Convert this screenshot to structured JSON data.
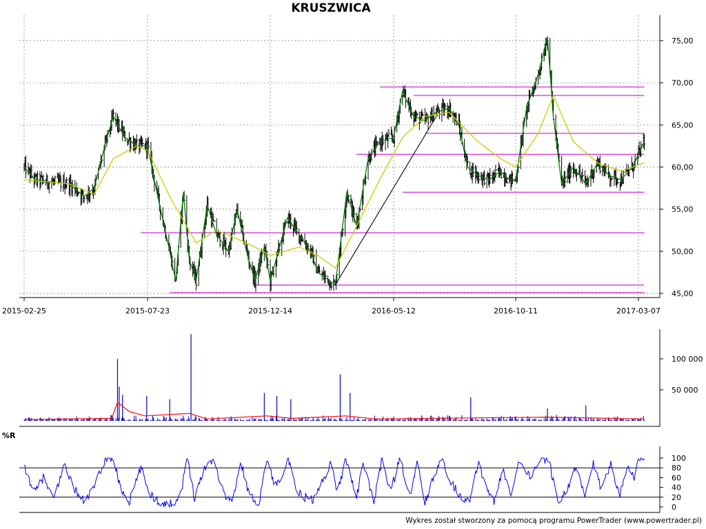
{
  "title": "KRUSZWICA",
  "footer": "Wykres został stworzony za pomocą programu PowerTrader (www.powertrader.pl)",
  "colors": {
    "price": "#000000",
    "short_ma": "#008000",
    "long_ma": "#cccc00",
    "level_lines": "#dd55dd",
    "volume": "#0000cc",
    "volume_ma": "#ff0000",
    "williams_r": "#0000ee",
    "grid": "#777777"
  },
  "chart_data": [
    {
      "type": "line",
      "name": "price",
      "title": "KRUSZWICA",
      "x_tick_labels": [
        "2015-02-25",
        "2015-07-23",
        "2015-12-14",
        "2016-05-12",
        "2016-10-11",
        "2017-03-07"
      ],
      "y_tick_labels": [
        "45,00",
        "50,00",
        "55,00",
        "60,00",
        "65,00",
        "70,00",
        "75,00"
      ],
      "ylim": [
        45,
        77
      ],
      "grid": true,
      "close_series": [
        [
          "2015-02-25",
          60.0
        ],
        [
          "2015-03-10",
          58.5
        ],
        [
          "2015-03-31",
          58.2
        ],
        [
          "2015-04-20",
          58.0
        ],
        [
          "2015-05-08",
          56.5
        ],
        [
          "2015-05-20",
          57.5
        ],
        [
          "2015-06-03",
          63.0
        ],
        [
          "2015-06-12",
          66.0
        ],
        [
          "2015-06-26",
          63.5
        ],
        [
          "2015-07-10",
          62.5
        ],
        [
          "2015-07-23",
          62.5
        ],
        [
          "2015-08-05",
          56.0
        ],
        [
          "2015-08-18",
          50.0
        ],
        [
          "2015-08-25",
          46.5
        ],
        [
          "2015-09-03",
          57.0
        ],
        [
          "2015-09-10",
          49.0
        ],
        [
          "2015-09-18",
          46.5
        ],
        [
          "2015-10-01",
          55.5
        ],
        [
          "2015-10-12",
          52.0
        ],
        [
          "2015-10-26",
          50.0
        ],
        [
          "2015-11-05",
          55.0
        ],
        [
          "2015-11-16",
          50.0
        ],
        [
          "2015-11-26",
          46.5
        ],
        [
          "2015-12-07",
          50.5
        ],
        [
          "2015-12-14",
          46.5
        ],
        [
          "2016-01-04",
          54.0
        ],
        [
          "2016-01-18",
          52.0
        ],
        [
          "2016-02-01",
          50.0
        ],
        [
          "2016-02-10",
          47.5
        ],
        [
          "2016-03-02",
          46.0
        ],
        [
          "2016-03-16",
          57.0
        ],
        [
          "2016-03-28",
          53.0
        ],
        [
          "2016-04-11",
          61.0
        ],
        [
          "2016-04-25",
          63.0
        ],
        [
          "2016-05-12",
          63.5
        ],
        [
          "2016-05-23",
          69.0
        ],
        [
          "2016-06-06",
          66.0
        ],
        [
          "2016-06-20",
          65.5
        ],
        [
          "2016-07-04",
          66.5
        ],
        [
          "2016-07-20",
          67.0
        ],
        [
          "2016-08-01",
          65.0
        ],
        [
          "2016-08-12",
          60.0
        ],
        [
          "2016-08-25",
          59.0
        ],
        [
          "2016-09-08",
          58.5
        ],
        [
          "2016-09-22",
          59.5
        ],
        [
          "2016-10-03",
          58.5
        ],
        [
          "2016-10-11",
          58.5
        ],
        [
          "2016-10-24",
          67.0
        ],
        [
          "2016-11-07",
          71.0
        ],
        [
          "2016-11-18",
          75.5
        ],
        [
          "2016-11-25",
          66.0
        ],
        [
          "2016-12-05",
          58.0
        ],
        [
          "2016-12-19",
          60.0
        ],
        [
          "2017-01-03",
          58.0
        ],
        [
          "2017-01-17",
          60.5
        ],
        [
          "2017-01-31",
          59.0
        ],
        [
          "2017-02-14",
          58.5
        ],
        [
          "2017-02-28",
          60.0
        ],
        [
          "2017-03-07",
          61.5
        ],
        [
          "2017-03-14",
          63.0
        ]
      ],
      "long_ma_series": [
        [
          "2015-02-25",
          58.5
        ],
        [
          "2015-04-20",
          58.0
        ],
        [
          "2015-05-20",
          56.8
        ],
        [
          "2015-06-12",
          61.0
        ],
        [
          "2015-07-10",
          62.5
        ],
        [
          "2015-07-23",
          62.0
        ],
        [
          "2015-08-18",
          56.5
        ],
        [
          "2015-09-18",
          51.0
        ],
        [
          "2015-10-12",
          52.5
        ],
        [
          "2015-11-05",
          51.5
        ],
        [
          "2015-11-26",
          50.5
        ],
        [
          "2015-12-14",
          49.5
        ],
        [
          "2016-01-18",
          50.5
        ],
        [
          "2016-02-10",
          49.5
        ],
        [
          "2016-03-02",
          48.0
        ],
        [
          "2016-03-28",
          53.0
        ],
        [
          "2016-04-25",
          58.5
        ],
        [
          "2016-05-23",
          63.5
        ],
        [
          "2016-06-20",
          66.0
        ],
        [
          "2016-07-20",
          66.5
        ],
        [
          "2016-08-25",
          63.0
        ],
        [
          "2016-09-22",
          61.0
        ],
        [
          "2016-10-11",
          60.0
        ],
        [
          "2016-11-07",
          64.0
        ],
        [
          "2016-11-25",
          68.5
        ],
        [
          "2016-12-19",
          63.0
        ],
        [
          "2017-01-17",
          60.5
        ],
        [
          "2017-02-14",
          59.5
        ],
        [
          "2017-03-14",
          60.5
        ]
      ],
      "level_lines": [
        {
          "value": 69.5,
          "from": "2016-04-25",
          "to": "2017-03-14"
        },
        {
          "value": 68.5,
          "from": "2016-06-06",
          "to": "2017-03-14"
        },
        {
          "value": 64.0,
          "from": "2016-06-20",
          "to": "2017-03-14"
        },
        {
          "value": 61.5,
          "from": "2016-03-28",
          "to": "2017-03-14"
        },
        {
          "value": 57.0,
          "from": "2016-05-23",
          "to": "2017-03-14"
        },
        {
          "value": 52.2,
          "from": "2015-07-15",
          "to": "2017-03-14"
        },
        {
          "value": 46.0,
          "from": "2015-11-26",
          "to": "2017-03-14"
        },
        {
          "value": 45.1,
          "from": "2015-08-18",
          "to": "2017-03-14"
        }
      ],
      "trend_line": {
        "from": [
          "2016-03-02",
          46.0
        ],
        "to": [
          "2016-07-04",
          66.0
        ]
      }
    },
    {
      "type": "bar",
      "name": "volume",
      "y_tick_labels": [
        "50 000",
        "100 000"
      ],
      "ylim": [
        0,
        140000
      ],
      "spikes": [
        [
          "2015-06-17",
          100000
        ],
        [
          "2015-06-19",
          55000
        ],
        [
          "2015-06-23",
          42000
        ],
        [
          "2015-07-22",
          40000
        ],
        [
          "2015-08-18",
          35000
        ],
        [
          "2015-09-12",
          140000
        ],
        [
          "2015-12-07",
          45000
        ],
        [
          "2015-12-22",
          40000
        ],
        [
          "2016-01-08",
          35000
        ],
        [
          "2016-03-08",
          75000
        ],
        [
          "2016-03-20",
          45000
        ],
        [
          "2016-08-16",
          38000
        ],
        [
          "2016-11-18",
          20000
        ],
        [
          "2017-01-03",
          25000
        ]
      ],
      "ma_series": [
        [
          "2015-02-25",
          2000
        ],
        [
          "2015-06-10",
          4000
        ],
        [
          "2015-06-17",
          30000
        ],
        [
          "2015-07-01",
          15000
        ],
        [
          "2015-07-20",
          8000
        ],
        [
          "2015-09-10",
          12000
        ],
        [
          "2015-10-01",
          3000
        ],
        [
          "2015-12-10",
          8000
        ],
        [
          "2016-01-10",
          4000
        ],
        [
          "2016-03-15",
          8000
        ],
        [
          "2016-04-20",
          3000
        ],
        [
          "2016-11-18",
          6000
        ],
        [
          "2017-03-14",
          3000
        ]
      ]
    },
    {
      "type": "line",
      "name": "williams_r",
      "label": "%R",
      "y_tick_labels": [
        "0",
        "20",
        "40",
        "60",
        "80",
        "100"
      ],
      "ylim": [
        0,
        100
      ],
      "ref_lines": [
        20,
        80
      ],
      "series": [
        [
          "2015-02-25",
          80
        ],
        [
          "2015-03-10",
          30
        ],
        [
          "2015-03-20",
          60
        ],
        [
          "2015-04-01",
          15
        ],
        [
          "2015-04-15",
          90
        ],
        [
          "2015-04-25",
          40
        ],
        [
          "2015-05-08",
          10
        ],
        [
          "2015-05-20",
          40
        ],
        [
          "2015-06-03",
          100
        ],
        [
          "2015-06-12",
          100
        ],
        [
          "2015-06-20",
          40
        ],
        [
          "2015-07-01",
          10
        ],
        [
          "2015-07-15",
          80
        ],
        [
          "2015-07-25",
          30
        ],
        [
          "2015-08-05",
          10
        ],
        [
          "2015-08-18",
          5
        ],
        [
          "2015-08-30",
          20
        ],
        [
          "2015-09-08",
          100
        ],
        [
          "2015-09-16",
          20
        ],
        [
          "2015-09-28",
          80
        ],
        [
          "2015-10-08",
          100
        ],
        [
          "2015-10-20",
          30
        ],
        [
          "2015-10-30",
          10
        ],
        [
          "2015-11-10",
          90
        ],
        [
          "2015-11-20",
          20
        ],
        [
          "2015-12-01",
          10
        ],
        [
          "2015-12-10",
          100
        ],
        [
          "2015-12-20",
          40
        ],
        [
          "2016-01-05",
          95
        ],
        [
          "2016-01-15",
          30
        ],
        [
          "2016-01-25",
          20
        ],
        [
          "2016-02-05",
          15
        ],
        [
          "2016-02-15",
          50
        ],
        [
          "2016-02-25",
          90
        ],
        [
          "2016-03-05",
          30
        ],
        [
          "2016-03-15",
          100
        ],
        [
          "2016-03-28",
          20
        ],
        [
          "2016-04-05",
          90
        ],
        [
          "2016-04-18",
          10
        ],
        [
          "2016-04-28",
          100
        ],
        [
          "2016-05-08",
          30
        ],
        [
          "2016-05-20",
          100
        ],
        [
          "2016-06-01",
          20
        ],
        [
          "2016-06-10",
          90
        ],
        [
          "2016-06-20",
          10
        ],
        [
          "2016-07-01",
          60
        ],
        [
          "2016-07-12",
          100
        ],
        [
          "2016-07-22",
          50
        ],
        [
          "2016-08-05",
          20
        ],
        [
          "2016-08-15",
          10
        ],
        [
          "2016-08-25",
          90
        ],
        [
          "2016-09-05",
          40
        ],
        [
          "2016-09-15",
          10
        ],
        [
          "2016-09-25",
          80
        ],
        [
          "2016-10-05",
          20
        ],
        [
          "2016-10-15",
          100
        ],
        [
          "2016-10-28",
          60
        ],
        [
          "2016-11-10",
          100
        ],
        [
          "2016-11-20",
          90
        ],
        [
          "2016-12-01",
          10
        ],
        [
          "2016-12-12",
          40
        ],
        [
          "2016-12-22",
          80
        ],
        [
          "2017-01-02",
          20
        ],
        [
          "2017-01-12",
          90
        ],
        [
          "2017-01-22",
          30
        ],
        [
          "2017-02-02",
          95
        ],
        [
          "2017-02-12",
          20
        ],
        [
          "2017-02-22",
          90
        ],
        [
          "2017-03-02",
          60
        ],
        [
          "2017-03-08",
          100
        ],
        [
          "2017-03-14",
          100
        ]
      ]
    }
  ]
}
